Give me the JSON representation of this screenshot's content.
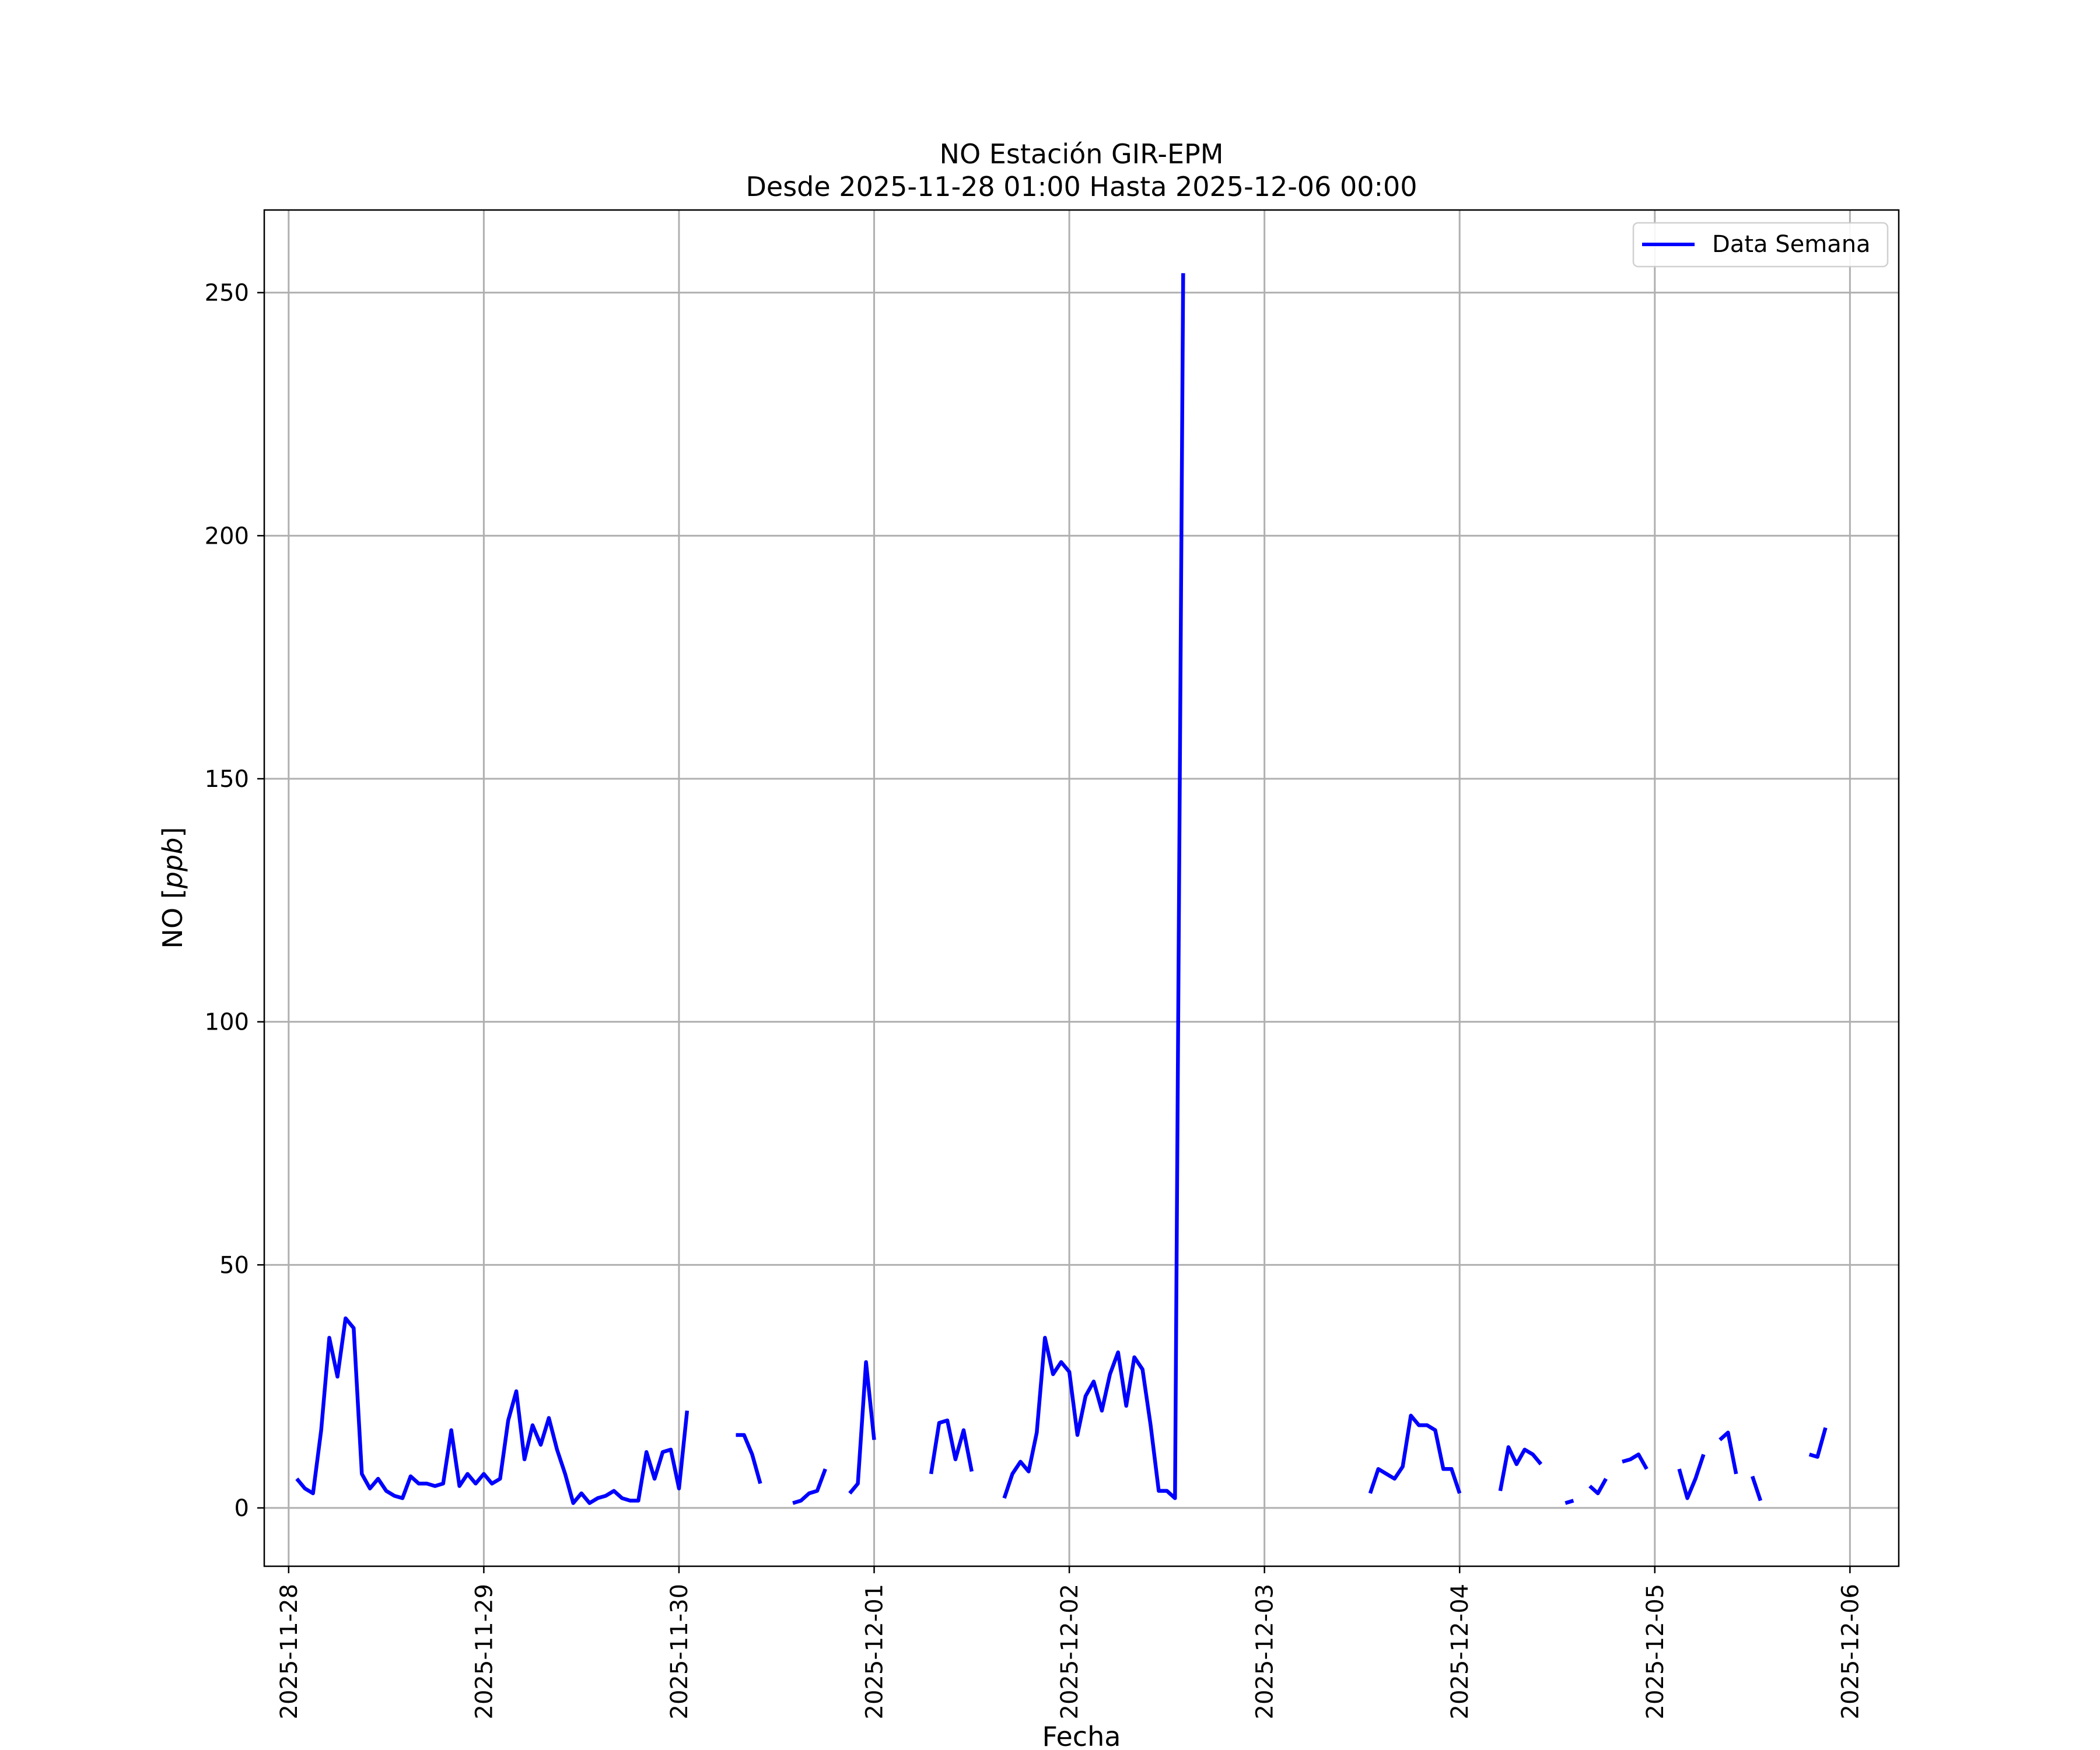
{
  "chart_data": {
    "type": "line",
    "title": "NO Estación GIR-EPM",
    "subtitle": "Desde 2025-11-28 01:00 Hasta 2025-12-06 00:00",
    "xlabel": "Fecha",
    "ylabel_prefix": "NO [",
    "ylabel_unit": "ppb",
    "ylabel_suffix": "]",
    "xlim": [
      "2025-11-27T21:00",
      "2025-12-06T06:00"
    ],
    "ylim": [
      -12,
      267
    ],
    "x_ticks": [
      "2025-11-28",
      "2025-11-29",
      "2025-11-30",
      "2025-12-01",
      "2025-12-02",
      "2025-12-03",
      "2025-12-04",
      "2025-12-05",
      "2025-12-06"
    ],
    "y_ticks": [
      0,
      50,
      100,
      150,
      200,
      250
    ],
    "grid": true,
    "legend_position": "top-right",
    "color": "#0000ff",
    "series": [
      {
        "name": "Data Semana",
        "points": [
          [
            "2025-11-28T01:00",
            6
          ],
          [
            "2025-11-28T02:00",
            4
          ],
          [
            "2025-11-28T03:00",
            3
          ],
          [
            "2025-11-28T04:00",
            16
          ],
          [
            "2025-11-28T05:00",
            35
          ],
          [
            "2025-11-28T06:00",
            27
          ],
          [
            "2025-11-28T07:00",
            39
          ],
          [
            "2025-11-28T08:00",
            37
          ],
          [
            "2025-11-28T09:00",
            7
          ],
          [
            "2025-11-28T10:00",
            4
          ],
          [
            "2025-11-28T11:00",
            6
          ],
          [
            "2025-11-28T12:00",
            3.5
          ],
          [
            "2025-11-28T13:00",
            2.5
          ],
          [
            "2025-11-28T14:00",
            2
          ],
          [
            "2025-11-28T15:00",
            6.5
          ],
          [
            "2025-11-28T16:00",
            5
          ],
          [
            "2025-11-28T17:00",
            5
          ],
          [
            "2025-11-28T18:00",
            4.5
          ],
          [
            "2025-11-28T19:00",
            5
          ],
          [
            "2025-11-28T20:00",
            16
          ],
          [
            "2025-11-28T21:00",
            4.5
          ],
          [
            "2025-11-28T22:00",
            7
          ],
          [
            "2025-11-28T23:00",
            5
          ],
          [
            "2025-11-29T00:00",
            7
          ],
          [
            "2025-11-29T01:00",
            5
          ],
          [
            "2025-11-29T02:00",
            6
          ],
          [
            "2025-11-29T03:00",
            18
          ],
          [
            "2025-11-29T04:00",
            24
          ],
          [
            "2025-11-29T05:00",
            10
          ],
          [
            "2025-11-29T06:00",
            17
          ],
          [
            "2025-11-29T07:00",
            13
          ],
          [
            "2025-11-29T08:00",
            18.5
          ],
          [
            "2025-11-29T09:00",
            12
          ],
          [
            "2025-11-29T10:00",
            7
          ],
          [
            "2025-11-29T11:00",
            1
          ],
          [
            "2025-11-29T12:00",
            3
          ],
          [
            "2025-11-29T13:00",
            1
          ],
          [
            "2025-11-29T14:00",
            2
          ],
          [
            "2025-11-29T15:00",
            2.5
          ],
          [
            "2025-11-29T16:00",
            3.5
          ],
          [
            "2025-11-29T17:00",
            2
          ],
          [
            "2025-11-29T18:00",
            1.5
          ],
          [
            "2025-11-29T19:00",
            1.5
          ],
          [
            "2025-11-29T20:00",
            11.5
          ],
          [
            "2025-11-29T21:00",
            6
          ],
          [
            "2025-11-29T22:00",
            11.5
          ],
          [
            "2025-11-29T23:00",
            12
          ],
          [
            "2025-11-30T00:00",
            4
          ],
          [
            "2025-11-30T01:00",
            20
          ],
          [
            "2025-11-30T02:00",
            null
          ],
          [
            "2025-11-30T06:00",
            null
          ],
          [
            "2025-11-30T07:00",
            15
          ],
          [
            "2025-11-30T08:00",
            15
          ],
          [
            "2025-11-30T09:00",
            11
          ],
          [
            "2025-11-30T10:00",
            5
          ],
          [
            "2025-11-30T11:00",
            null
          ],
          [
            "2025-11-30T13:00",
            null
          ],
          [
            "2025-11-30T14:00",
            1
          ],
          [
            "2025-11-30T15:00",
            1.5
          ],
          [
            "2025-11-30T16:00",
            3
          ],
          [
            "2025-11-30T17:00",
            3.5
          ],
          [
            "2025-11-30T18:00",
            8
          ],
          [
            "2025-11-30T19:00",
            null
          ],
          [
            "2025-11-30T21:00",
            3
          ],
          [
            "2025-11-30T22:00",
            5
          ],
          [
            "2025-11-30T23:00",
            30
          ],
          [
            "2025-12-01T00:00",
            14
          ],
          [
            "2025-12-01T01:00",
            null
          ],
          [
            "2025-12-01T06:00",
            null
          ],
          [
            "2025-12-01T07:00",
            7
          ],
          [
            "2025-12-01T08:00",
            17.5
          ],
          [
            "2025-12-01T09:00",
            18
          ],
          [
            "2025-12-01T10:00",
            10
          ],
          [
            "2025-12-01T11:00",
            16
          ],
          [
            "2025-12-01T12:00",
            7.5
          ],
          [
            "2025-12-01T13:00",
            null
          ],
          [
            "2025-12-01T15:00",
            null
          ],
          [
            "2025-12-01T16:00",
            2
          ],
          [
            "2025-12-01T17:00",
            7
          ],
          [
            "2025-12-01T18:00",
            9.5
          ],
          [
            "2025-12-01T19:00",
            7.5
          ],
          [
            "2025-12-01T20:00",
            15.5
          ],
          [
            "2025-12-01T21:00",
            35
          ],
          [
            "2025-12-01T22:00",
            27.5
          ],
          [
            "2025-12-01T23:00",
            30
          ],
          [
            "2025-12-02T00:00",
            28
          ],
          [
            "2025-12-02T01:00",
            15
          ],
          [
            "2025-12-02T02:00",
            23
          ],
          [
            "2025-12-02T03:00",
            26
          ],
          [
            "2025-12-02T04:00",
            20
          ],
          [
            "2025-12-02T05:00",
            27.5
          ],
          [
            "2025-12-02T06:00",
            32
          ],
          [
            "2025-12-02T07:00",
            21
          ],
          [
            "2025-12-02T08:00",
            31
          ],
          [
            "2025-12-02T09:00",
            28.5
          ],
          [
            "2025-12-02T10:00",
            17
          ],
          [
            "2025-12-02T11:00",
            3.5
          ],
          [
            "2025-12-02T12:00",
            3.5
          ],
          [
            "2025-12-02T13:00",
            2
          ],
          [
            "2025-12-02T14:00",
            254
          ],
          [
            "2025-12-02T15:00",
            null
          ],
          [
            "2025-12-03T12:00",
            null
          ],
          [
            "2025-12-03T13:00",
            3
          ],
          [
            "2025-12-03T14:00",
            8
          ],
          [
            "2025-12-03T15:00",
            7
          ],
          [
            "2025-12-03T16:00",
            6
          ],
          [
            "2025-12-03T17:00",
            8.5
          ],
          [
            "2025-12-03T18:00",
            19
          ],
          [
            "2025-12-03T19:00",
            17
          ],
          [
            "2025-12-03T20:00",
            17
          ],
          [
            "2025-12-03T21:00",
            16
          ],
          [
            "2025-12-03T22:00",
            8
          ],
          [
            "2025-12-03T23:00",
            8
          ],
          [
            "2025-12-04T00:00",
            3
          ],
          [
            "2025-12-04T01:00",
            null
          ],
          [
            "2025-12-04T04:00",
            null
          ],
          [
            "2025-12-04T05:00",
            3.5
          ],
          [
            "2025-12-04T06:00",
            12.5
          ],
          [
            "2025-12-04T07:00",
            9
          ],
          [
            "2025-12-04T08:00",
            12
          ],
          [
            "2025-12-04T09:00",
            11
          ],
          [
            "2025-12-04T10:00",
            9
          ],
          [
            "2025-12-04T11:00",
            null
          ],
          [
            "2025-12-04T12:00",
            null
          ],
          [
            "2025-12-04T13:00",
            1
          ],
          [
            "2025-12-04T14:00",
            1.5
          ],
          [
            "2025-12-04T15:00",
            null
          ],
          [
            "2025-12-04T16:00",
            4.5
          ],
          [
            "2025-12-04T17:00",
            3
          ],
          [
            "2025-12-04T18:00",
            6
          ],
          [
            "2025-12-04T19:00",
            null
          ],
          [
            "2025-12-04T20:00",
            9.5
          ],
          [
            "2025-12-04T21:00",
            10
          ],
          [
            "2025-12-04T22:00",
            11
          ],
          [
            "2025-12-04T23:00",
            8
          ],
          [
            "2025-12-05T00:00",
            null
          ],
          [
            "2025-12-05T02:00",
            null
          ],
          [
            "2025-12-05T03:00",
            8
          ],
          [
            "2025-12-05T04:00",
            2
          ],
          [
            "2025-12-05T05:00",
            6
          ],
          [
            "2025-12-05T06:00",
            11
          ],
          [
            "2025-12-05T07:00",
            null
          ],
          [
            "2025-12-05T08:00",
            14
          ],
          [
            "2025-12-05T09:00",
            15.5
          ],
          [
            "2025-12-05T10:00",
            7
          ],
          [
            "2025-12-05T11:00",
            null
          ],
          [
            "2025-12-05T12:00",
            6.5
          ],
          [
            "2025-12-05T13:00",
            1.5
          ],
          [
            "2025-12-05T14:00",
            null
          ],
          [
            "2025-12-05T18:00",
            null
          ],
          [
            "2025-12-05T19:00",
            11
          ],
          [
            "2025-12-05T20:00",
            10.5
          ],
          [
            "2025-12-05T21:00",
            16.5
          ]
        ]
      }
    ]
  }
}
